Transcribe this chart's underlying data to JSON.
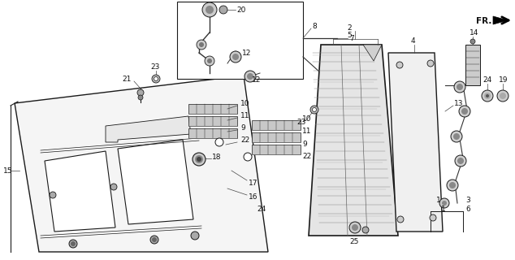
{
  "bg_color": "#ffffff",
  "line_color": "#1a1a1a",
  "fig_width": 6.34,
  "fig_height": 3.2,
  "dpi": 100,
  "font_size": 6.5,
  "label_color": "#111111",
  "part_color": "#d0d0d0",
  "wire_color": "#555555"
}
